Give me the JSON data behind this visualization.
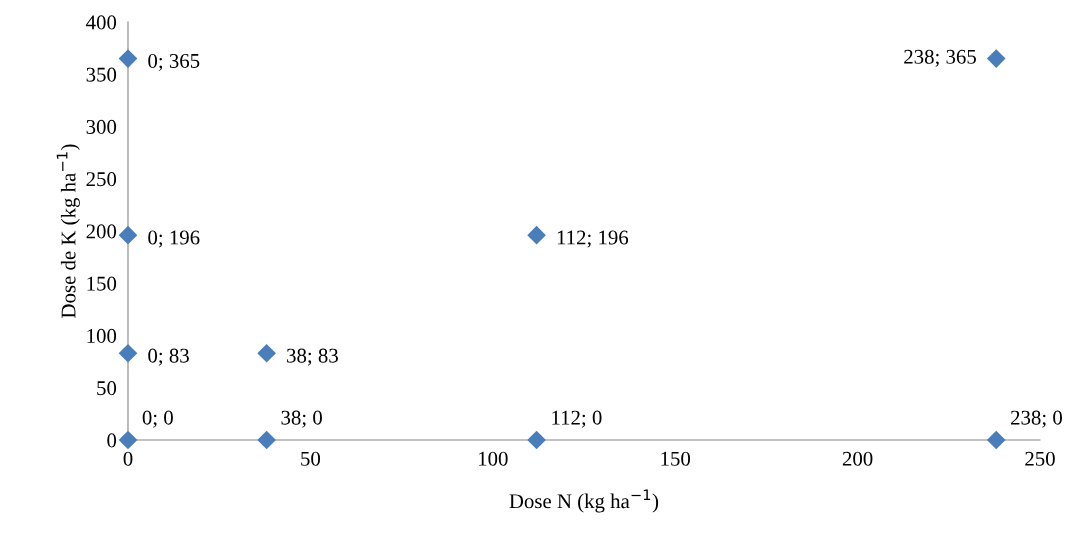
{
  "chart_data": {
    "type": "scatter",
    "xlabel": "Dose N (kg ha$^{−1}$)",
    "ylabel": "Dose de K (kg ha$^{−1}$)",
    "x": [
      0,
      0,
      0,
      0,
      38,
      38,
      112,
      112,
      238,
      238
    ],
    "values": [
      365,
      196,
      83,
      0,
      83,
      0,
      196,
      0,
      365,
      0
    ],
    "value_labels": [
      "0; 365",
      "0; 196",
      "0; 83",
      "0; 0",
      "38; 83",
      "38; 0",
      "112; 196",
      "112; 0",
      "238; 365",
      "238; 0"
    ],
    "color": "#4a7ebb",
    "marker": "diamond",
    "grid": false,
    "legend": false,
    "xlim": [
      0,
      250
    ],
    "xticks": [
      0,
      50,
      100,
      150,
      200,
      250
    ],
    "ylim": [
      0,
      400
    ],
    "yticks": [
      0,
      50,
      100,
      150,
      200,
      250,
      300,
      350,
      400
    ]
  }
}
